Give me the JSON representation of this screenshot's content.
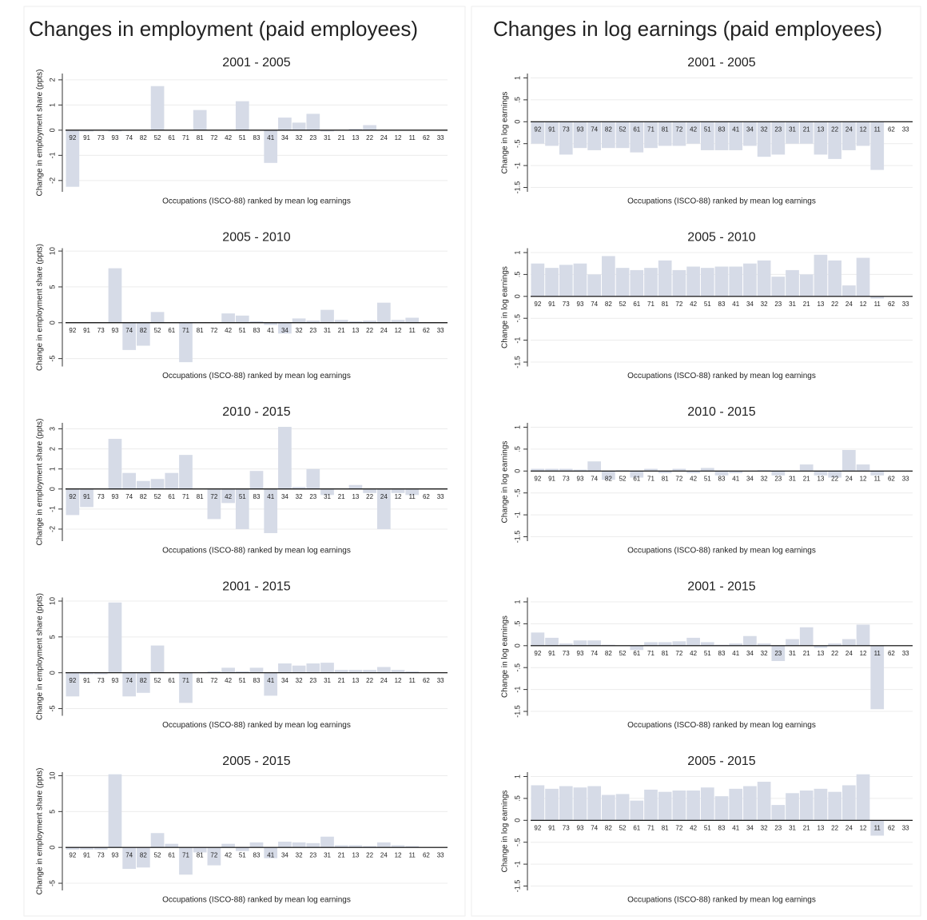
{
  "headers": [
    "Changes in employment (paid employees)",
    "Changes in log earnings (paid employees)"
  ],
  "chart_data": [
    {
      "type": "bar",
      "title": "2001 - 2005",
      "ylabel": "Change in employment share (ppts)",
      "xlabel": "Occupations (ISCO-88) ranked by mean log earnings",
      "color": "#d6dbe7",
      "grid": true,
      "categories": [
        "92",
        "91",
        "73",
        "93",
        "74",
        "82",
        "52",
        "61",
        "71",
        "81",
        "72",
        "42",
        "51",
        "83",
        "41",
        "34",
        "32",
        "23",
        "31",
        "21",
        "13",
        "22",
        "24",
        "12",
        "11",
        "62",
        "33"
      ],
      "values": [
        -2.25,
        -0.05,
        0,
        -0.05,
        0,
        0,
        1.75,
        0,
        0,
        0.8,
        0,
        0,
        1.15,
        0,
        -1.3,
        0.5,
        0.3,
        0.65,
        -0.05,
        0,
        0.05,
        0.2,
        0,
        0,
        0,
        0,
        0
      ],
      "ylim": [
        -2.45,
        2.25
      ],
      "yticks": [
        -2,
        -1,
        0,
        1,
        2
      ]
    },
    {
      "type": "bar",
      "title": "2005 - 2010",
      "ylabel": "Change in employment share (ppts)",
      "xlabel": "Occupations (ISCO-88) ranked by mean log earnings",
      "color": "#d6dbe7",
      "grid": true,
      "categories": [
        "92",
        "91",
        "73",
        "93",
        "74",
        "82",
        "52",
        "61",
        "71",
        "81",
        "72",
        "42",
        "51",
        "83",
        "41",
        "34",
        "32",
        "23",
        "31",
        "21",
        "13",
        "22",
        "24",
        "12",
        "11",
        "62",
        "33"
      ],
      "values": [
        0,
        0,
        0,
        7.6,
        -3.8,
        -3.2,
        1.5,
        0,
        -5.5,
        0,
        0,
        1.3,
        1.0,
        0.2,
        -0.3,
        -1.5,
        0.6,
        0.3,
        1.8,
        0.4,
        0.2,
        0.3,
        2.8,
        0.4,
        0.7,
        0,
        0
      ],
      "ylim": [
        -6.1,
        10.4
      ],
      "yticks": [
        -5,
        0,
        5,
        10
      ]
    },
    {
      "type": "bar",
      "title": "2010 - 2015",
      "ylabel": "Change in employment share (ppts)",
      "xlabel": "Occupations (ISCO-88) ranked by mean log earnings",
      "color": "#d6dbe7",
      "grid": true,
      "categories": [
        "92",
        "91",
        "73",
        "93",
        "74",
        "82",
        "52",
        "61",
        "71",
        "81",
        "72",
        "42",
        "51",
        "83",
        "41",
        "34",
        "32",
        "23",
        "31",
        "21",
        "13",
        "22",
        "24",
        "12",
        "11",
        "62",
        "33"
      ],
      "values": [
        -1.3,
        -0.9,
        0,
        2.5,
        0.8,
        0.4,
        0.5,
        0.8,
        1.7,
        0,
        -1.5,
        -0.7,
        -2.0,
        0.9,
        -2.2,
        3.1,
        0.1,
        1.0,
        -0.3,
        0,
        0.2,
        -0.2,
        -2.0,
        -0.2,
        -0.3,
        0,
        0
      ],
      "ylim": [
        -2.6,
        3.3
      ],
      "yticks": [
        -2,
        -1,
        0,
        1,
        2,
        3
      ]
    },
    {
      "type": "bar",
      "title": "2001 - 2015",
      "ylabel": "Change in employment share (ppts)",
      "xlabel": "Occupations (ISCO-88) ranked by mean log earnings",
      "color": "#d6dbe7",
      "grid": true,
      "categories": [
        "92",
        "91",
        "73",
        "93",
        "74",
        "82",
        "52",
        "61",
        "71",
        "81",
        "72",
        "42",
        "51",
        "83",
        "41",
        "34",
        "32",
        "23",
        "31",
        "21",
        "13",
        "22",
        "24",
        "12",
        "11",
        "62",
        "33"
      ],
      "values": [
        -3.3,
        -0.2,
        -0.2,
        9.8,
        -3.3,
        -2.8,
        3.8,
        0,
        -4.2,
        0,
        0.2,
        0.7,
        0.2,
        0.7,
        -3.2,
        1.3,
        1.0,
        1.3,
        1.4,
        0.4,
        0.4,
        0.4,
        0.8,
        0.4,
        0.2,
        0,
        0
      ],
      "ylim": [
        -6,
        10.5
      ],
      "yticks": [
        -5,
        0,
        5,
        10
      ]
    },
    {
      "type": "bar",
      "title": "2005 - 2015",
      "ylabel": "Change in employment share (ppts)",
      "xlabel": "Occupations (ISCO-88) ranked by mean log earnings",
      "color": "#d6dbe7",
      "grid": true,
      "categories": [
        "92",
        "91",
        "73",
        "93",
        "74",
        "82",
        "52",
        "61",
        "71",
        "81",
        "72",
        "42",
        "51",
        "83",
        "41",
        "34",
        "32",
        "23",
        "31",
        "21",
        "13",
        "22",
        "24",
        "12",
        "11",
        "62",
        "33"
      ],
      "values": [
        -0.3,
        -0.3,
        -0.3,
        10.2,
        -3.0,
        -2.8,
        2.0,
        0.5,
        -3.8,
        -0.7,
        -2.5,
        0.5,
        -0.5,
        0.7,
        -1.5,
        0.8,
        0.7,
        0.6,
        1.5,
        0.3,
        0.3,
        0.2,
        0.7,
        0.3,
        0.2,
        0,
        0
      ],
      "ylim": [
        -6,
        10.5
      ],
      "yticks": [
        -5,
        0,
        5,
        10
      ]
    },
    {
      "type": "bar",
      "title": "2001 - 2005",
      "ylabel": "Change in log earnings",
      "xlabel": "Occupations (ISCO-88) ranked by mean log earnings",
      "color": "#d6dbe7",
      "grid": true,
      "categories": [
        "92",
        "91",
        "73",
        "93",
        "74",
        "82",
        "52",
        "61",
        "71",
        "81",
        "72",
        "42",
        "51",
        "83",
        "41",
        "34",
        "32",
        "23",
        "31",
        "21",
        "13",
        "22",
        "24",
        "12",
        "11",
        "62",
        "33"
      ],
      "values": [
        -0.5,
        -0.55,
        -0.75,
        -0.6,
        -0.65,
        -0.6,
        -0.6,
        -0.7,
        -0.6,
        -0.55,
        -0.55,
        -0.5,
        -0.65,
        -0.65,
        -0.65,
        -0.55,
        -0.8,
        -0.75,
        -0.5,
        -0.5,
        -0.75,
        -0.85,
        -0.65,
        -0.55,
        -1.1,
        0,
        0
      ],
      "ylim": [
        -1.6,
        1.1
      ],
      "yticks": [
        {
          "value": -1.5,
          "label": "-1.5"
        },
        -1,
        {
          "value": -0.5,
          "label": "-.5"
        },
        0,
        {
          "value": 0.5,
          "label": ".5"
        },
        1
      ]
    },
    {
      "type": "bar",
      "title": "2005 - 2010",
      "ylabel": "Change in log earnings",
      "xlabel": "Occupations (ISCO-88) ranked by mean log earnings",
      "color": "#d6dbe7",
      "grid": true,
      "categories": [
        "92",
        "91",
        "73",
        "93",
        "74",
        "82",
        "52",
        "61",
        "71",
        "81",
        "72",
        "42",
        "51",
        "83",
        "41",
        "34",
        "32",
        "23",
        "31",
        "21",
        "13",
        "22",
        "24",
        "12",
        "11",
        "62",
        "33"
      ],
      "values": [
        0.75,
        0.65,
        0.72,
        0.75,
        0.5,
        0.92,
        0.65,
        0.6,
        0.65,
        0.82,
        0.6,
        0.68,
        0.65,
        0.68,
        0.68,
        0.75,
        0.82,
        0.45,
        0.6,
        0.5,
        0.95,
        0.82,
        0.25,
        0.88,
        -0.05,
        0,
        0
      ],
      "ylim": [
        -1.6,
        1.1
      ],
      "yticks": [
        {
          "value": -1.5,
          "label": "-1.5"
        },
        -1,
        {
          "value": -0.5,
          "label": "-.5"
        },
        0,
        {
          "value": 0.5,
          "label": ".5"
        },
        1
      ]
    },
    {
      "type": "bar",
      "title": "2010 - 2015",
      "ylabel": "Change in log earnings",
      "xlabel": "Occupations (ISCO-88) ranked by mean log earnings",
      "color": "#d6dbe7",
      "grid": true,
      "categories": [
        "92",
        "91",
        "73",
        "93",
        "74",
        "82",
        "52",
        "61",
        "71",
        "81",
        "72",
        "42",
        "51",
        "83",
        "41",
        "34",
        "32",
        "23",
        "31",
        "21",
        "13",
        "22",
        "24",
        "12",
        "11",
        "62",
        "33"
      ],
      "values": [
        0.05,
        0.05,
        0.05,
        0.03,
        0.22,
        -0.2,
        0.02,
        -0.15,
        0.05,
        -0.05,
        0.05,
        -0.05,
        0.07,
        -0.1,
        -0.05,
        0,
        0.02,
        -0.1,
        0,
        0.15,
        -0.1,
        -0.15,
        0.48,
        0.15,
        -0.1,
        0,
        0
      ],
      "ylim": [
        -1.6,
        1.1
      ],
      "yticks": [
        {
          "value": -1.5,
          "label": "-1.5"
        },
        -1,
        {
          "value": -0.5,
          "label": "-.5"
        },
        0,
        {
          "value": 0.5,
          "label": ".5"
        },
        1
      ]
    },
    {
      "type": "bar",
      "title": "2001 - 2015",
      "ylabel": "Change in log earnings",
      "xlabel": "Occupations (ISCO-88) ranked by mean log earnings",
      "color": "#d6dbe7",
      "grid": true,
      "categories": [
        "92",
        "91",
        "73",
        "93",
        "74",
        "82",
        "52",
        "61",
        "71",
        "81",
        "72",
        "42",
        "51",
        "83",
        "41",
        "34",
        "32",
        "23",
        "31",
        "21",
        "13",
        "22",
        "24",
        "12",
        "11",
        "62",
        "33"
      ],
      "values": [
        0.3,
        0.18,
        0.05,
        0.12,
        0.12,
        0.02,
        0,
        -0.1,
        0.08,
        0.08,
        0.1,
        0.18,
        0.08,
        0.02,
        0.05,
        0.22,
        0.05,
        -0.35,
        0.15,
        0.42,
        -0.05,
        0.05,
        0.15,
        0.48,
        -1.45,
        0,
        0
      ],
      "ylim": [
        -1.6,
        1.1
      ],
      "yticks": [
        {
          "value": -1.5,
          "label": "-1.5"
        },
        -1,
        {
          "value": -0.5,
          "label": "-.5"
        },
        0,
        {
          "value": 0.5,
          "label": ".5"
        },
        1
      ]
    },
    {
      "type": "bar",
      "title": "2005 - 2015",
      "ylabel": "Change in log earnings",
      "xlabel": "Occupations (ISCO-88) ranked by mean log earnings",
      "color": "#d6dbe7",
      "grid": true,
      "categories": [
        "92",
        "91",
        "73",
        "93",
        "74",
        "82",
        "52",
        "61",
        "71",
        "81",
        "72",
        "42",
        "51",
        "83",
        "41",
        "34",
        "32",
        "23",
        "31",
        "21",
        "13",
        "22",
        "24",
        "12",
        "11",
        "62",
        "33"
      ],
      "values": [
        0.8,
        0.72,
        0.78,
        0.75,
        0.78,
        0.58,
        0.6,
        0.45,
        0.7,
        0.65,
        0.68,
        0.68,
        0.75,
        0.55,
        0.72,
        0.78,
        0.88,
        0.35,
        0.62,
        0.68,
        0.72,
        0.65,
        0.8,
        1.05,
        -0.35,
        0,
        0
      ],
      "ylim": [
        -1.6,
        1.1
      ],
      "yticks": [
        {
          "value": -1.5,
          "label": "-1.5"
        },
        -1,
        {
          "value": -0.5,
          "label": "-.5"
        },
        0,
        {
          "value": 0.5,
          "label": ".5"
        },
        1
      ]
    }
  ]
}
